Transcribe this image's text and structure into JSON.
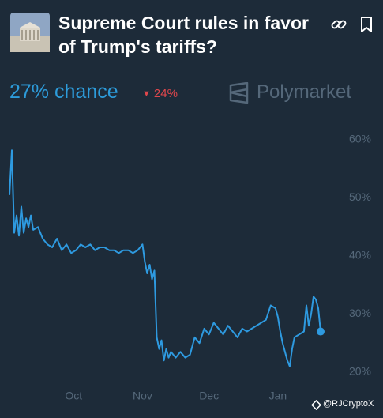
{
  "chart_data": {
    "type": "line",
    "title": "Supreme Court rules in favor of Trump's tariffs?",
    "chance_label": "27% chance",
    "change_label": "24%",
    "brand": "Polymarket",
    "watermark": "@RJCryptoX",
    "color": "#2e9ae0",
    "grid": false,
    "x": [
      0,
      1,
      2,
      3,
      4,
      5,
      6,
      7,
      8,
      9,
      10,
      12,
      14,
      16,
      18,
      20,
      22,
      24,
      26,
      28,
      30,
      32,
      34,
      36,
      38,
      40,
      42,
      44,
      46,
      48,
      50,
      52,
      54,
      56,
      57,
      58,
      59,
      60,
      61,
      62,
      63,
      64,
      65,
      66,
      67,
      68,
      70,
      72,
      74,
      76,
      78,
      80,
      82,
      84,
      86,
      88,
      90,
      92,
      94,
      96,
      98,
      100,
      102,
      104,
      106,
      108,
      110,
      112,
      113,
      114,
      115,
      116,
      117,
      118,
      119,
      120,
      122,
      124,
      125,
      126,
      127,
      128,
      129,
      130,
      131
    ],
    "values": [
      50.5,
      58.2,
      44,
      47,
      43.5,
      48.5,
      44,
      46.5,
      45,
      47,
      44.5,
      45,
      43,
      42,
      41.5,
      43,
      41,
      42,
      40.5,
      41,
      42,
      41.5,
      42,
      41,
      41.5,
      41.5,
      41,
      41,
      40.5,
      41,
      41,
      40.5,
      41,
      42,
      39,
      37,
      38.5,
      36,
      37.5,
      26,
      24,
      25.5,
      22,
      24,
      22.5,
      23.5,
      22.5,
      23.5,
      22.5,
      23,
      26,
      25,
      27.5,
      26.5,
      28.5,
      27.5,
      26.5,
      28,
      27,
      26,
      27.5,
      27,
      27.5,
      28,
      28.5,
      29,
      31.5,
      31,
      29.5,
      27,
      25,
      23.5,
      22,
      21,
      24,
      26,
      26.5,
      27,
      31.5,
      28,
      30,
      33,
      32.5,
      31,
      27
    ],
    "xlim": [
      0,
      131
    ],
    "xticks": [
      {
        "value": 27,
        "label": "Oct"
      },
      {
        "value": 56,
        "label": "Nov"
      },
      {
        "value": 84,
        "label": "Dec"
      },
      {
        "value": 113,
        "label": "Jan"
      }
    ],
    "ylim": [
      18.5,
      61.5
    ],
    "yticks": [
      {
        "value": 20,
        "label": "20%"
      },
      {
        "value": 30,
        "label": "30%"
      },
      {
        "value": 40,
        "label": "40%"
      },
      {
        "value": 50,
        "label": "50%"
      },
      {
        "value": 60,
        "label": "60%"
      }
    ]
  }
}
